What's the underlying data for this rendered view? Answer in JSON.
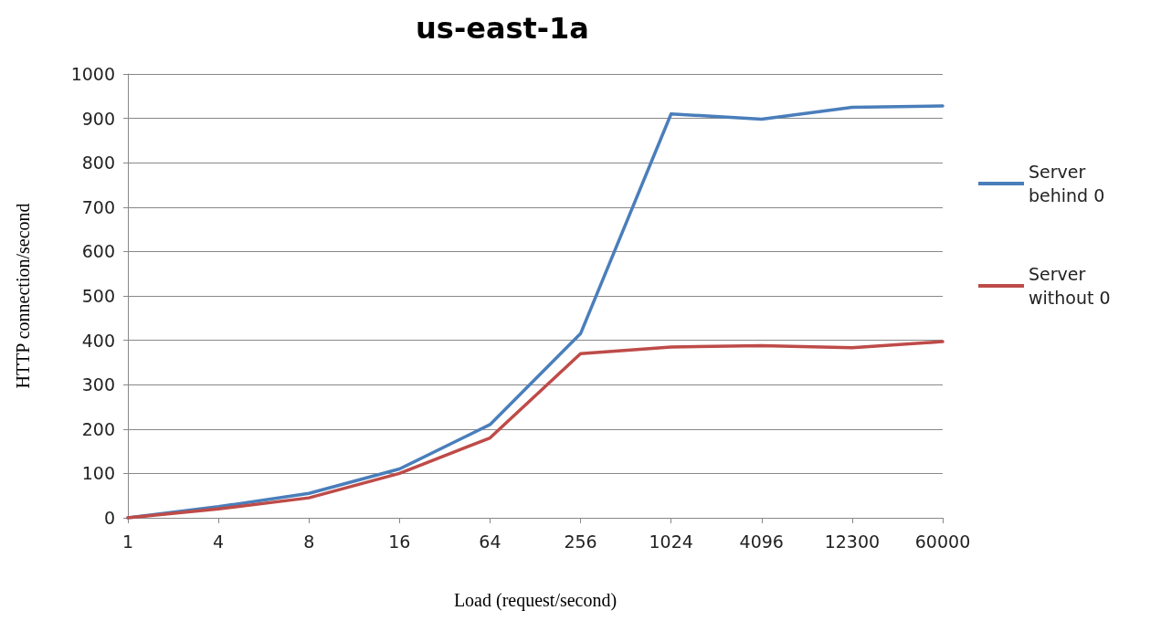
{
  "chart_data": {
    "type": "line",
    "title": "us-east-1a",
    "xlabel": "Load (request/second)",
    "ylabel": "HTTP connection/second",
    "categories": [
      "1",
      "4",
      "8",
      "16",
      "64",
      "256",
      "1024",
      "4096",
      "12300",
      "60000"
    ],
    "series": [
      {
        "name": "Server behind 0",
        "color": "#4a7ebb",
        "values": [
          0,
          25,
          55,
          110,
          210,
          415,
          910,
          898,
          925,
          928
        ]
      },
      {
        "name": "Server without 0",
        "color": "#be4b48",
        "values": [
          0,
          20,
          45,
          100,
          180,
          370,
          385,
          388,
          383,
          397
        ]
      }
    ],
    "ylim": [
      0,
      1000
    ],
    "yticks": [
      0,
      100,
      200,
      300,
      400,
      500,
      600,
      700,
      800,
      900,
      1000
    ],
    "grid": "y",
    "legend": "right",
    "marker": "none",
    "line_style": "solid"
  }
}
